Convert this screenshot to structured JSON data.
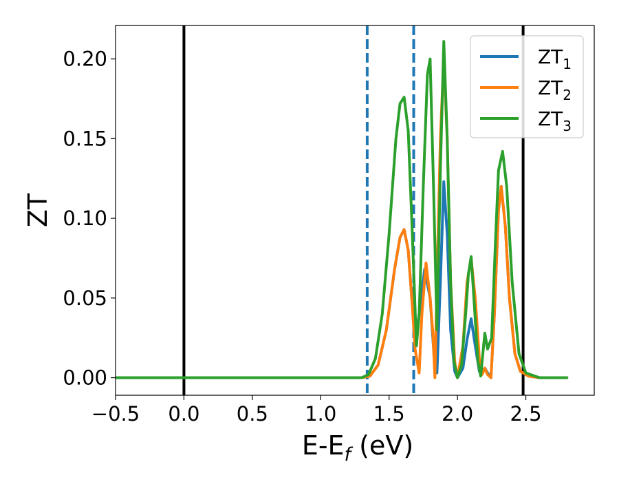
{
  "chart_data": {
    "type": "line",
    "xlabel": "E-E",
    "xlabel_sub": "f",
    "xlabel_unit": " (eV)",
    "ylabel": "ZT",
    "xlim": [
      -0.5,
      3.0
    ],
    "ylim": [
      -0.011,
      0.221
    ],
    "xticks": [
      -0.5,
      0.0,
      0.5,
      1.0,
      1.5,
      2.0,
      2.5
    ],
    "xtick_labels": [
      "−0.5",
      "0.0",
      "0.5",
      "1.0",
      "1.5",
      "2.0",
      "2.5"
    ],
    "yticks": [
      0.0,
      0.05,
      0.1,
      0.15,
      0.2
    ],
    "ytick_labels": [
      "0.00",
      "0.05",
      "0.10",
      "0.15",
      "0.20"
    ],
    "grid": false,
    "legend_position": "top-right",
    "vlines": [
      {
        "x": 0.0,
        "color": "#000000",
        "style": "solid"
      },
      {
        "x": 2.48,
        "color": "#000000",
        "style": "solid"
      },
      {
        "x": 1.34,
        "color": "#1f77b4",
        "style": "dashed"
      },
      {
        "x": 1.68,
        "color": "#1f77b4",
        "style": "dashed"
      }
    ],
    "series": [
      {
        "name": "ZT",
        "name_sub": "1",
        "color": "#1f77b4",
        "x": [
          -0.5,
          1.3,
          1.36,
          1.42,
          1.48,
          1.54,
          1.58,
          1.61,
          1.64,
          1.67,
          1.69,
          1.72,
          1.76,
          1.8,
          1.83,
          1.85,
          1.875,
          1.9,
          1.925,
          1.95,
          1.98,
          2.0,
          2.04,
          2.07,
          2.1,
          2.13,
          2.16,
          2.18,
          2.2,
          2.22,
          2.245,
          2.27,
          2.3,
          2.32,
          2.35,
          2.38,
          2.42,
          2.46,
          2.52,
          2.6,
          2.8
        ],
        "y": [
          0.0,
          0.0,
          0.001,
          0.008,
          0.03,
          0.068,
          0.088,
          0.093,
          0.08,
          0.045,
          0.022,
          0.04,
          0.068,
          0.05,
          0.012,
          0.003,
          0.06,
          0.123,
          0.09,
          0.03,
          0.004,
          0.0,
          0.006,
          0.024,
          0.037,
          0.02,
          0.004,
          0.004,
          0.006,
          0.003,
          0.0,
          0.04,
          0.105,
          0.12,
          0.095,
          0.05,
          0.015,
          0.004,
          0.001,
          0.0,
          0.0
        ]
      },
      {
        "name": "ZT",
        "name_sub": "2",
        "color": "#ff7f0e",
        "x": [
          -0.5,
          1.3,
          1.36,
          1.42,
          1.48,
          1.54,
          1.58,
          1.61,
          1.64,
          1.67,
          1.69,
          1.72,
          1.74,
          1.77,
          1.8,
          1.82,
          1.835,
          1.85,
          1.875,
          1.9,
          1.925,
          1.95,
          1.98,
          2.0,
          2.04,
          2.07,
          2.1,
          2.13,
          2.16,
          2.18,
          2.2,
          2.22,
          2.245,
          2.27,
          2.3,
          2.32,
          2.35,
          2.38,
          2.42,
          2.46,
          2.52,
          2.6,
          2.8
        ],
        "y": [
          0.0,
          0.0,
          0.001,
          0.008,
          0.03,
          0.068,
          0.088,
          0.093,
          0.08,
          0.045,
          0.018,
          0.003,
          0.04,
          0.072,
          0.05,
          0.028,
          0.0,
          0.06,
          0.15,
          0.2,
          0.15,
          0.06,
          0.01,
          0.0,
          0.02,
          0.06,
          0.075,
          0.05,
          0.012,
          0.002,
          0.006,
          0.002,
          0.0,
          0.04,
          0.105,
          0.12,
          0.095,
          0.05,
          0.015,
          0.004,
          0.001,
          0.0,
          0.0
        ]
      },
      {
        "name": "ZT",
        "name_sub": "3",
        "color": "#2ca02c",
        "x": [
          -0.5,
          1.3,
          1.35,
          1.4,
          1.45,
          1.5,
          1.55,
          1.58,
          1.61,
          1.64,
          1.67,
          1.7,
          1.72,
          1.75,
          1.78,
          1.8,
          1.825,
          1.85,
          1.875,
          1.9,
          1.925,
          1.95,
          1.975,
          2.0,
          2.03,
          2.06,
          2.08,
          2.1,
          2.12,
          2.15,
          2.17,
          2.2,
          2.22,
          2.25,
          2.28,
          2.3,
          2.33,
          2.36,
          2.4,
          2.45,
          2.5,
          2.6,
          2.8
        ],
        "y": [
          0.0,
          0.0,
          0.002,
          0.012,
          0.04,
          0.09,
          0.15,
          0.172,
          0.176,
          0.155,
          0.09,
          0.02,
          0.04,
          0.12,
          0.19,
          0.2,
          0.12,
          0.03,
          0.13,
          0.211,
          0.15,
          0.06,
          0.01,
          0.0,
          0.008,
          0.04,
          0.065,
          0.076,
          0.05,
          0.01,
          0.001,
          0.028,
          0.018,
          0.025,
          0.09,
          0.13,
          0.142,
          0.12,
          0.06,
          0.015,
          0.003,
          0.0,
          0.0
        ]
      }
    ]
  }
}
